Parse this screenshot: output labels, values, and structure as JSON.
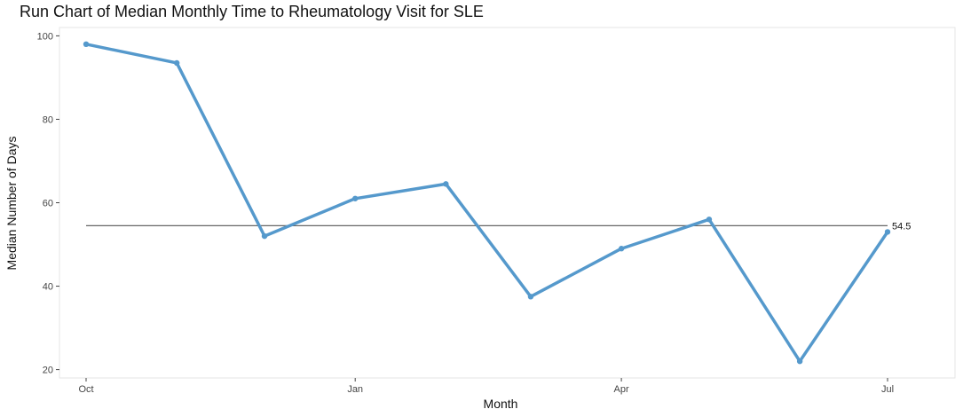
{
  "chart_data": {
    "type": "line",
    "title": "Run Chart of Median Monthly Time to Rheumatology Visit for SLE",
    "xlabel": "Month",
    "ylabel": "Median Number of Days",
    "x": [
      "2019-10-01",
      "2019-11-01",
      "2019-12-01",
      "2020-01-01",
      "2020-02-01",
      "2020-03-01",
      "2020-04-01",
      "2020-05-01",
      "2020-06-01",
      "2020-07-01"
    ],
    "x_tick_values": [
      "2019-10-01",
      "2020-01-01",
      "2020-04-01",
      "2020-07-01"
    ],
    "x_tick_labels": [
      "Oct",
      "Jan",
      "Apr",
      "Jul"
    ],
    "series": [
      {
        "values": [
          98,
          93.5,
          52,
          61,
          64.5,
          37.5,
          49,
          56,
          22,
          53
        ]
      }
    ],
    "median": {
      "value": 54.5,
      "label": "54.5"
    },
    "y_ticks": [
      20,
      40,
      60,
      80,
      100
    ],
    "y_tick_labels": [
      "20",
      "40",
      "60",
      "80",
      "100"
    ],
    "ylim": [
      18,
      102
    ],
    "grid": false,
    "colors": {
      "line": "#5599cc",
      "median": "#666666",
      "panel_border": "#e6e6e6"
    }
  }
}
